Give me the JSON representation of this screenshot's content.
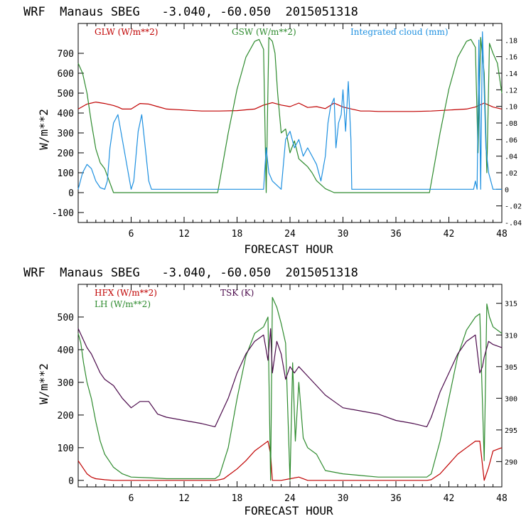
{
  "chart_data": [
    {
      "type": "line",
      "title": "WRF  Manaus SBEG   -3.040, -60.050  2015051318",
      "xlabel": "FORECAST HOUR",
      "ylabel": "W/m**2",
      "xlim": [
        0,
        48
      ],
      "xticks": [
        "6",
        "12",
        "18",
        "24",
        "30",
        "36",
        "42",
        "48"
      ],
      "ylim": [
        -150,
        850
      ],
      "yticks": [
        "-100",
        "0",
        "100",
        "200",
        "300",
        "400",
        "500",
        "600",
        "700"
      ],
      "y2lim": [
        -0.04,
        0.2
      ],
      "y2ticks": [
        "-.04",
        "-.02",
        "0",
        ".02",
        ".04",
        ".06",
        ".08",
        ".10",
        ".12",
        ".14",
        ".16",
        ".18"
      ],
      "series": [
        {
          "name": "GLW (W/m**2)",
          "color": "#c00000",
          "axis": "left",
          "x": [
            0,
            1,
            2,
            3,
            4,
            4.5,
            5,
            6,
            7,
            8,
            9,
            10,
            12,
            14,
            16,
            18,
            20,
            21,
            22,
            23,
            24,
            25,
            26,
            27,
            28,
            29,
            30,
            31,
            32,
            33,
            34,
            36,
            38,
            40,
            42,
            44,
            45,
            46,
            47,
            48
          ],
          "y": [
            420,
            445,
            455,
            448,
            438,
            430,
            420,
            420,
            448,
            445,
            432,
            420,
            415,
            410,
            410,
            412,
            420,
            440,
            452,
            440,
            432,
            450,
            428,
            432,
            422,
            450,
            430,
            420,
            410,
            410,
            408,
            408,
            408,
            410,
            415,
            420,
            430,
            450,
            430,
            420
          ]
        },
        {
          "name": "GSW (W/m**2)",
          "color": "#2e8b2e",
          "axis": "left",
          "x": [
            0,
            0.5,
            1,
            1.5,
            2,
            2.5,
            3,
            3.5,
            4,
            15.8,
            16,
            17,
            18,
            19,
            20,
            20.5,
            21,
            21.3,
            21.6,
            22,
            22.3,
            22.6,
            23,
            23.5,
            24,
            24.5,
            25,
            25.5,
            26,
            26.5,
            27,
            28,
            29,
            39.8,
            40,
            41,
            42,
            43,
            44,
            44.5,
            45,
            45.3,
            45.6,
            46,
            46.3,
            46.6,
            47,
            47.5,
            48
          ],
          "y": [
            650,
            600,
            500,
            350,
            220,
            150,
            120,
            60,
            0,
            0,
            50,
            300,
            520,
            680,
            760,
            770,
            720,
            0,
            780,
            760,
            700,
            500,
            300,
            320,
            200,
            260,
            170,
            150,
            130,
            100,
            60,
            20,
            0,
            0,
            50,
            300,
            520,
            680,
            760,
            770,
            730,
            200,
            780,
            600,
            100,
            750,
            700,
            650,
            500
          ]
        },
        {
          "name": "Integrated cloud (mm)",
          "color": "#1e90e0",
          "axis": "right",
          "x": [
            0,
            0.5,
            1,
            1.5,
            2,
            2.5,
            3,
            3.3,
            3.6,
            4,
            4.5,
            5,
            5.5,
            6,
            6.3,
            6.8,
            7.2,
            7.6,
            8,
            8.3,
            8.6,
            9,
            21,
            21.3,
            21.6,
            22,
            23,
            23.5,
            24,
            24.5,
            25,
            25.5,
            26,
            27,
            27.5,
            28,
            28.3,
            28.6,
            29,
            29.2,
            29.5,
            29.8,
            30,
            30.3,
            30.6,
            30.9,
            31,
            31.3,
            31.6,
            32,
            44.8,
            45,
            45.2,
            45.4,
            45.6,
            45.8,
            46,
            46.2,
            46.5,
            47,
            48
          ],
          "y": [
            0,
            0.02,
            0.03,
            0.025,
            0.01,
            0.002,
            0,
            0.01,
            0.05,
            0.08,
            0.09,
            0.06,
            0.03,
            0,
            0.01,
            0.07,
            0.09,
            0.05,
            0.01,
            0,
            0,
            0,
            0,
            0.05,
            0.02,
            0.01,
            0,
            0.06,
            0.07,
            0.05,
            0.06,
            0.04,
            0.05,
            0.03,
            0.01,
            0.04,
            0.08,
            0.1,
            0.11,
            0.05,
            0.08,
            0.09,
            0.12,
            0.07,
            0.13,
            0.06,
            0,
            0,
            0,
            0,
            0,
            0.01,
            0,
            0.18,
            0,
            0.19,
            0.12,
            0.05,
            0.02,
            0,
            0
          ]
        }
      ],
      "legend": [
        "GLW (W/m**2)",
        "GSW (W/m**2)",
        "Integrated cloud (mm)"
      ]
    },
    {
      "type": "line",
      "title": "WRF  Manaus SBEG   -3.040, -60.050  2015051318",
      "xlabel": "FORECAST HOUR",
      "ylabel": "W/m**2",
      "xlim": [
        0,
        48
      ],
      "xticks": [
        "6",
        "12",
        "18",
        "24",
        "30",
        "36",
        "42",
        "48"
      ],
      "ylim": [
        -20,
        600
      ],
      "yticks": [
        "0",
        "100",
        "200",
        "300",
        "400",
        "500"
      ],
      "y2lim": [
        286,
        318
      ],
      "y2ticks": [
        "290",
        "295",
        "300",
        "305",
        "310",
        "315"
      ],
      "series": [
        {
          "name": "HFX (W/m**2)",
          "color": "#c00000",
          "axis": "left",
          "x": [
            0,
            0.5,
            1,
            1.5,
            2,
            3,
            4,
            6,
            8,
            10,
            12,
            14,
            15.5,
            16,
            16.5,
            17,
            18,
            19,
            20,
            21,
            21.5,
            21.8,
            22,
            23,
            24,
            25,
            26,
            28,
            30,
            32,
            34,
            36,
            38,
            39.5,
            40,
            41,
            42,
            43,
            44,
            45,
            45.5,
            46,
            46.5,
            47,
            48
          ],
          "y": [
            60,
            40,
            20,
            10,
            5,
            2,
            0,
            0,
            0,
            0,
            0,
            0,
            0,
            2,
            5,
            15,
            35,
            60,
            90,
            110,
            120,
            80,
            0,
            0,
            5,
            10,
            0,
            0,
            0,
            0,
            0,
            0,
            0,
            0,
            2,
            20,
            50,
            80,
            100,
            120,
            120,
            0,
            40,
            90,
            100
          ]
        },
        {
          "name": "LH (W/m**2)",
          "color": "#2e8b2e",
          "axis": "left",
          "x": [
            0,
            0.3,
            0.6,
            1,
            1.5,
            2,
            2.5,
            3,
            3.5,
            4,
            5,
            6,
            8,
            10,
            12,
            14,
            15.5,
            16,
            17,
            18,
            19,
            20,
            21,
            21.5,
            21.8,
            22,
            22.5,
            23,
            23.5,
            24,
            24.3,
            24.6,
            25,
            25.5,
            26,
            27,
            28,
            30,
            32,
            34,
            36,
            38,
            39.5,
            40,
            41,
            42,
            43,
            44,
            45,
            45.5,
            46,
            46.3,
            46.6,
            47,
            48
          ],
          "y": [
            450,
            420,
            360,
            300,
            250,
            180,
            120,
            80,
            60,
            40,
            20,
            10,
            8,
            5,
            5,
            5,
            5,
            15,
            100,
            250,
            380,
            450,
            470,
            500,
            0,
            560,
            530,
            480,
            420,
            0,
            360,
            120,
            300,
            130,
            100,
            80,
            30,
            20,
            15,
            10,
            10,
            10,
            10,
            20,
            120,
            250,
            380,
            460,
            500,
            510,
            60,
            540,
            500,
            470,
            450
          ]
        },
        {
          "name": "TSK (K)",
          "color": "#4b0a4b",
          "axis": "right",
          "x": [
            0,
            0.5,
            1,
            1.5,
            2,
            2.5,
            3,
            4,
            5,
            6,
            7,
            8,
            9,
            10,
            12,
            14,
            15.5,
            16,
            17,
            18,
            19,
            20,
            21,
            21.5,
            21.8,
            22,
            22.5,
            23,
            23.5,
            24,
            24.5,
            25,
            26,
            27,
            28,
            29,
            30,
            32,
            34,
            36,
            38,
            39.5,
            40,
            41,
            42,
            43,
            44,
            45,
            45.5,
            45.8,
            46,
            46.5,
            47,
            48
          ],
          "y": [
            311,
            309.5,
            308,
            307,
            305.5,
            304,
            303,
            302,
            300,
            298.5,
            299.5,
            299.5,
            297.5,
            297,
            296.5,
            296,
            295.5,
            297,
            300,
            304,
            307,
            309,
            310,
            306,
            311,
            304,
            309,
            307,
            303,
            305,
            304,
            305,
            303.5,
            302,
            300.5,
            299.5,
            298.5,
            298,
            297.5,
            296.5,
            296,
            295.5,
            297,
            301,
            304,
            307,
            309,
            310,
            304,
            305,
            306.5,
            309,
            308.5,
            308
          ]
        }
      ],
      "legend": [
        "HFX (W/m**2)",
        "LH (W/m**2)",
        "TSK (K)"
      ]
    }
  ]
}
